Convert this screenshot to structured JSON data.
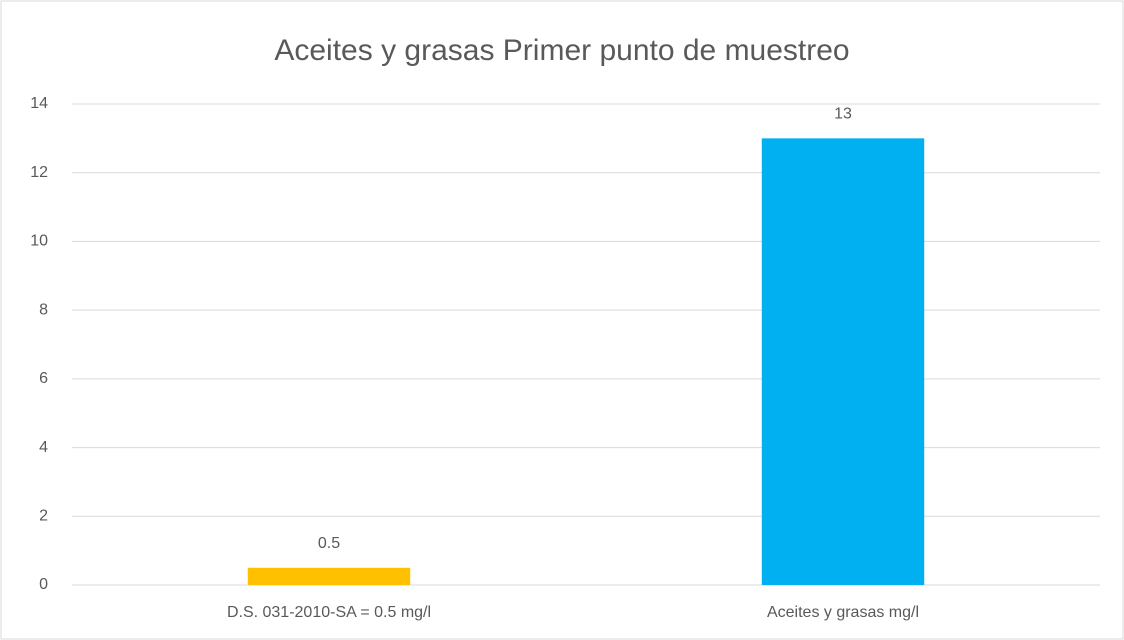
{
  "chart_data": {
    "type": "bar",
    "title": "Aceites y grasas Primer punto de muestreo",
    "categories": [
      "D.S. 031-2010-SA = 0.5 mg/l",
      "Aceites y grasas mg/l"
    ],
    "values": [
      0.5,
      13
    ],
    "colors": [
      "#ffc000",
      "#00b0f0"
    ],
    "ylim": [
      0,
      14
    ],
    "yticks": [
      0,
      2,
      4,
      6,
      8,
      10,
      12,
      14
    ],
    "grid": true
  }
}
